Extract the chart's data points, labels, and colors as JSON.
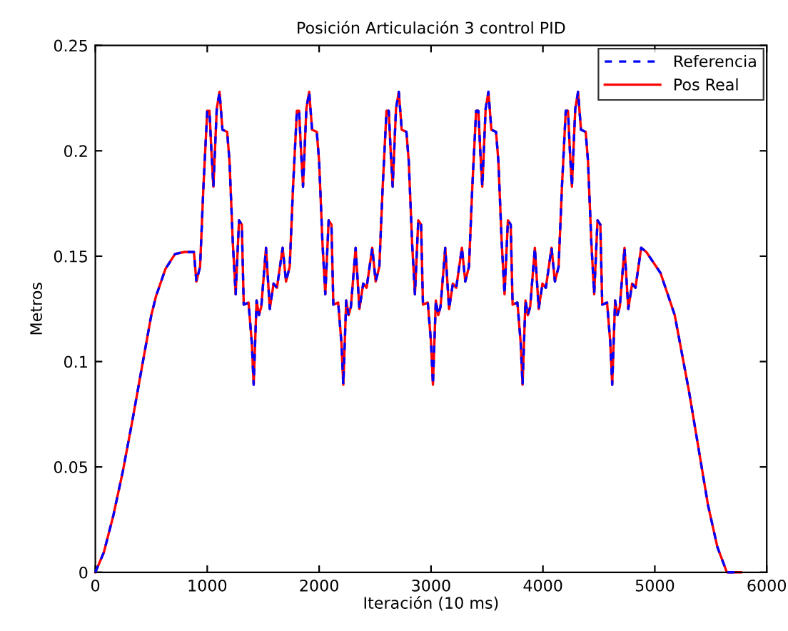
{
  "chart_data": {
    "type": "line",
    "title": "Posición Articulación 3 control PID",
    "xlabel": "Iteración (10 ms)",
    "ylabel": "Metros",
    "x": [
      0,
      76,
      161,
      246,
      331,
      415,
      500,
      542,
      627,
      712,
      797,
      881,
      903,
      936,
      966,
      1000,
      1020,
      1038,
      1055,
      1085,
      1110,
      1136,
      1178,
      1199,
      1229,
      1254,
      1284,
      1309,
      1326,
      1369,
      1398,
      1415,
      1441,
      1462,
      1483,
      1525,
      1559,
      1593,
      1623,
      1674,
      1704,
      1737,
      1767,
      1801,
      1821,
      1839,
      1856,
      1886,
      1911,
      1937,
      1979,
      2000,
      2030,
      2055,
      2085,
      2110,
      2127,
      2170,
      2199,
      2216,
      2242,
      2263,
      2284,
      2326,
      2360,
      2394,
      2424,
      2475,
      2505,
      2538,
      2568,
      2602,
      2622,
      2640,
      2657,
      2687,
      2712,
      2738,
      2780,
      2801,
      2831,
      2856,
      2886,
      2911,
      2928,
      2971,
      3000,
      3017,
      3043,
      3064,
      3085,
      3127,
      3161,
      3195,
      3225,
      3276,
      3306,
      3339,
      3369,
      3403,
      3423,
      3441,
      3458,
      3488,
      3513,
      3539,
      3581,
      3602,
      3632,
      3657,
      3687,
      3712,
      3729,
      3772,
      3801,
      3818,
      3844,
      3865,
      3886,
      3928,
      3962,
      3996,
      4026,
      4077,
      4107,
      4140,
      4170,
      4204,
      4224,
      4242,
      4259,
      4289,
      4314,
      4340,
      4382,
      4403,
      4433,
      4458,
      4488,
      4513,
      4530,
      4573,
      4602,
      4619,
      4645,
      4666,
      4687,
      4729,
      4763,
      4797,
      4827,
      4878,
      4924,
      5051,
      5178,
      5305,
      5390,
      5475,
      5559,
      5644,
      5771
    ],
    "series": [
      {
        "name": "Referencia",
        "color": "#0000ff",
        "line_style": "dashed",
        "values": [
          0,
          0.0095,
          0.027,
          0.048,
          0.072,
          0.097,
          0.122,
          0.131,
          0.144,
          0.151,
          0.152,
          0.152,
          0.138,
          0.145,
          0.183,
          0.219,
          0.219,
          0.199,
          0.183,
          0.22,
          0.228,
          0.21,
          0.209,
          0.195,
          0.156,
          0.132,
          0.167,
          0.165,
          0.127,
          0.128,
          0.109,
          0.089,
          0.129,
          0.122,
          0.126,
          0.154,
          0.125,
          0.137,
          0.135,
          0.154,
          0.138,
          0.145,
          0.183,
          0.219,
          0.219,
          0.199,
          0.183,
          0.22,
          0.228,
          0.21,
          0.209,
          0.195,
          0.156,
          0.132,
          0.167,
          0.165,
          0.127,
          0.128,
          0.109,
          0.089,
          0.129,
          0.122,
          0.126,
          0.154,
          0.125,
          0.137,
          0.135,
          0.154,
          0.138,
          0.145,
          0.183,
          0.219,
          0.219,
          0.199,
          0.183,
          0.22,
          0.228,
          0.21,
          0.209,
          0.195,
          0.156,
          0.132,
          0.167,
          0.165,
          0.127,
          0.128,
          0.109,
          0.089,
          0.129,
          0.122,
          0.126,
          0.154,
          0.125,
          0.137,
          0.135,
          0.154,
          0.138,
          0.145,
          0.183,
          0.219,
          0.219,
          0.199,
          0.183,
          0.22,
          0.228,
          0.21,
          0.209,
          0.195,
          0.156,
          0.132,
          0.167,
          0.165,
          0.127,
          0.128,
          0.109,
          0.089,
          0.129,
          0.122,
          0.126,
          0.154,
          0.125,
          0.137,
          0.135,
          0.154,
          0.138,
          0.145,
          0.183,
          0.219,
          0.219,
          0.199,
          0.183,
          0.22,
          0.228,
          0.21,
          0.209,
          0.195,
          0.156,
          0.132,
          0.167,
          0.165,
          0.127,
          0.128,
          0.109,
          0.089,
          0.129,
          0.122,
          0.126,
          0.154,
          0.125,
          0.137,
          0.135,
          0.154,
          0.152,
          0.142,
          0.122,
          0.086,
          0.059,
          0.032,
          0.012,
          0,
          0
        ]
      },
      {
        "name": "Pos Real",
        "color": "#ff0000",
        "values": [
          0,
          0.0095,
          0.027,
          0.048,
          0.072,
          0.097,
          0.122,
          0.131,
          0.144,
          0.151,
          0.152,
          0.152,
          0.138,
          0.145,
          0.183,
          0.219,
          0.219,
          0.199,
          0.183,
          0.22,
          0.228,
          0.21,
          0.209,
          0.195,
          0.156,
          0.132,
          0.167,
          0.165,
          0.127,
          0.128,
          0.109,
          0.089,
          0.129,
          0.122,
          0.126,
          0.154,
          0.125,
          0.137,
          0.135,
          0.154,
          0.138,
          0.145,
          0.183,
          0.219,
          0.219,
          0.199,
          0.183,
          0.22,
          0.228,
          0.21,
          0.209,
          0.195,
          0.156,
          0.132,
          0.167,
          0.165,
          0.127,
          0.128,
          0.109,
          0.089,
          0.129,
          0.122,
          0.126,
          0.154,
          0.125,
          0.137,
          0.135,
          0.154,
          0.138,
          0.145,
          0.183,
          0.219,
          0.219,
          0.199,
          0.183,
          0.22,
          0.228,
          0.21,
          0.209,
          0.195,
          0.156,
          0.132,
          0.167,
          0.165,
          0.127,
          0.128,
          0.109,
          0.089,
          0.129,
          0.122,
          0.126,
          0.154,
          0.125,
          0.137,
          0.135,
          0.154,
          0.138,
          0.145,
          0.183,
          0.219,
          0.219,
          0.199,
          0.183,
          0.22,
          0.228,
          0.21,
          0.209,
          0.195,
          0.156,
          0.132,
          0.167,
          0.165,
          0.127,
          0.128,
          0.109,
          0.089,
          0.129,
          0.122,
          0.126,
          0.154,
          0.125,
          0.137,
          0.135,
          0.154,
          0.138,
          0.145,
          0.183,
          0.219,
          0.219,
          0.199,
          0.183,
          0.22,
          0.228,
          0.21,
          0.209,
          0.195,
          0.156,
          0.132,
          0.167,
          0.165,
          0.127,
          0.128,
          0.109,
          0.089,
          0.129,
          0.122,
          0.126,
          0.154,
          0.125,
          0.137,
          0.135,
          0.154,
          0.152,
          0.142,
          0.122,
          0.086,
          0.059,
          0.032,
          0.012,
          0,
          0
        ]
      }
    ],
    "xlim": [
      0,
      6000
    ],
    "xticks": [
      0,
      1000,
      2000,
      3000,
      4000,
      5000,
      6000
    ],
    "ylim": [
      0,
      0.25
    ],
    "yticks": [
      0,
      0.05,
      0.1,
      0.15,
      0.2,
      0.25
    ],
    "legend": "top right"
  }
}
